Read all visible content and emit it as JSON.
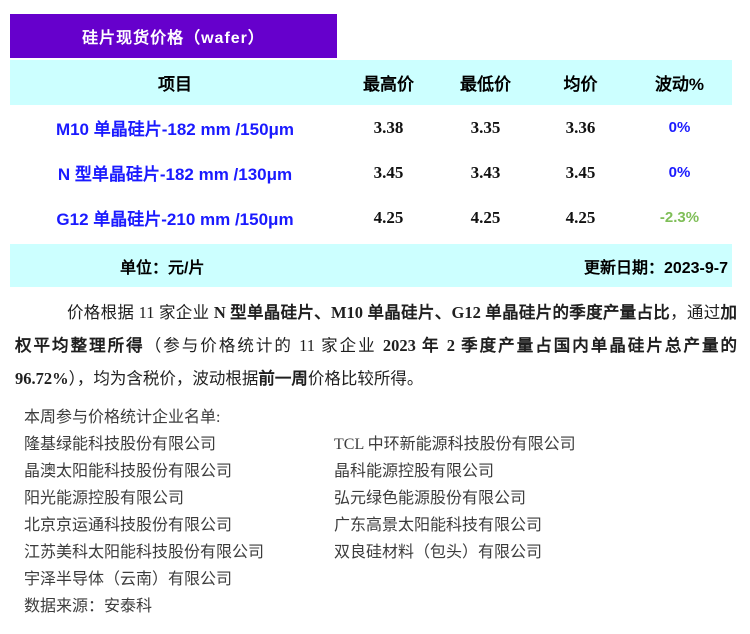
{
  "colors": {
    "purple": "#6600CC",
    "cyan": "#CCFFFF",
    "blue": "#1A1AFF",
    "green": "#7FBE58"
  },
  "banner": {
    "title": "硅片现货价格（wafer）"
  },
  "table": {
    "headers": [
      "项目",
      "最高价",
      "最低价",
      "均价",
      "波动%"
    ],
    "rows": [
      {
        "item": "M10 单晶硅片-182 mm /150μm",
        "high": "3.38",
        "low": "3.35",
        "avg": "3.36",
        "change": "0%",
        "change_color": "#1A1AFF"
      },
      {
        "item": "N 型单晶硅片-182 mm /130μm",
        "high": "3.45",
        "low": "3.43",
        "avg": "3.45",
        "change": "0%",
        "change_color": "#1A1AFF"
      },
      {
        "item": "G12 单晶硅片-210 mm /150μm",
        "high": "4.25",
        "low": "4.25",
        "avg": "4.25",
        "change": "-2.3%",
        "change_color": "#7FBE58"
      }
    ],
    "unit_label": "单位：元/片",
    "update_label": "更新日期：2023-9-7"
  },
  "note": {
    "segments": [
      {
        "text": "价格根据 11 家企业 ",
        "bold": false
      },
      {
        "text": "N 型单晶硅片、M10 单晶硅片、G12 单晶硅片的季度产量占比",
        "bold": true
      },
      {
        "text": "，通过",
        "bold": false
      },
      {
        "text": "加权平均整理所得",
        "bold": true
      },
      {
        "text": "（参与价格统计的 11 家企业 ",
        "bold": false
      },
      {
        "text": "2023 年 2 季度产量占国内单晶硅片总产量的 96.72%",
        "bold": true
      },
      {
        "text": "），均为含税价，波动根据",
        "bold": false
      },
      {
        "text": "前一周",
        "bold": true
      },
      {
        "text": "价格比较所得。",
        "bold": false
      }
    ]
  },
  "companies": {
    "heading": "本周参与价格统计企业名单:",
    "left": [
      "隆基绿能科技股份有限公司",
      "晶澳太阳能科技股份有限公司",
      "阳光能源控股有限公司",
      "北京京运通科技股份有限公司",
      "江苏美科太阳能科技股份有限公司",
      "宇泽半导体（云南）有限公司"
    ],
    "right": [
      "TCL 中环新能源科技股份有限公司",
      "晶科能源控股有限公司",
      "弘元绿色能源股份有限公司",
      "广东高景太阳能科技有限公司",
      "双良硅材料（包头）有限公司",
      ""
    ],
    "source": "数据来源：安泰科"
  }
}
